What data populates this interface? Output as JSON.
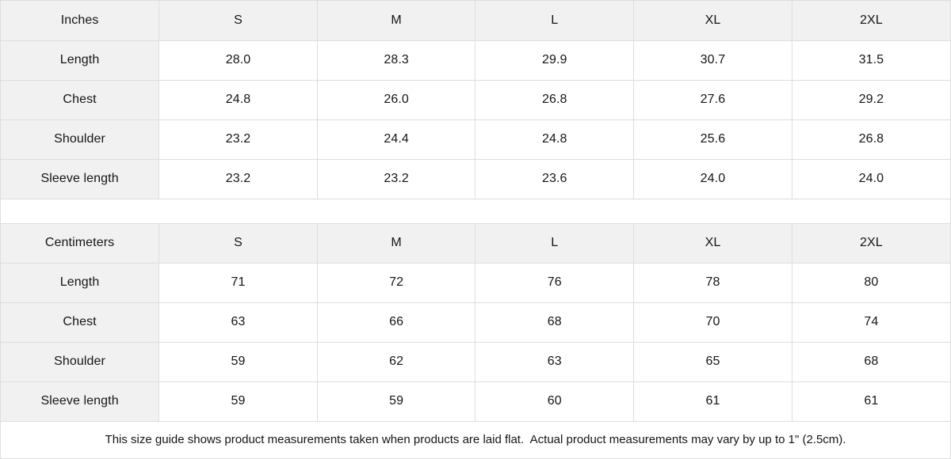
{
  "chart_data": [
    {
      "type": "table",
      "unit_label": "Inches",
      "columns": [
        "S",
        "M",
        "L",
        "XL",
        "2XL"
      ],
      "rows": [
        {
          "label": "Length",
          "values": [
            "28.0",
            "28.3",
            "29.9",
            "30.7",
            "31.5"
          ]
        },
        {
          "label": "Chest",
          "values": [
            "24.8",
            "26.0",
            "26.8",
            "27.6",
            "29.2"
          ]
        },
        {
          "label": "Shoulder",
          "values": [
            "23.2",
            "24.4",
            "24.8",
            "25.6",
            "26.8"
          ]
        },
        {
          "label": "Sleeve length",
          "values": [
            "23.2",
            "23.2",
            "23.6",
            "24.0",
            "24.0"
          ]
        }
      ]
    },
    {
      "type": "table",
      "unit_label": "Centimeters",
      "columns": [
        "S",
        "M",
        "L",
        "XL",
        "2XL"
      ],
      "rows": [
        {
          "label": "Length",
          "values": [
            "71",
            "72",
            "76",
            "78",
            "80"
          ]
        },
        {
          "label": "Chest",
          "values": [
            "63",
            "66",
            "68",
            "70",
            "74"
          ]
        },
        {
          "label": "Shoulder",
          "values": [
            "59",
            "62",
            "63",
            "65",
            "68"
          ]
        },
        {
          "label": "Sleeve length",
          "values": [
            "59",
            "59",
            "60",
            "61",
            "61"
          ]
        }
      ]
    }
  ],
  "footer": {
    "note": "This size guide shows product measurements taken when products are laid flat.  Actual product measurements may vary by up to 1\" (2.5cm)."
  },
  "colors": {
    "header_bg": "#f1f1f1",
    "border": "#dedede",
    "text": "#151515"
  }
}
